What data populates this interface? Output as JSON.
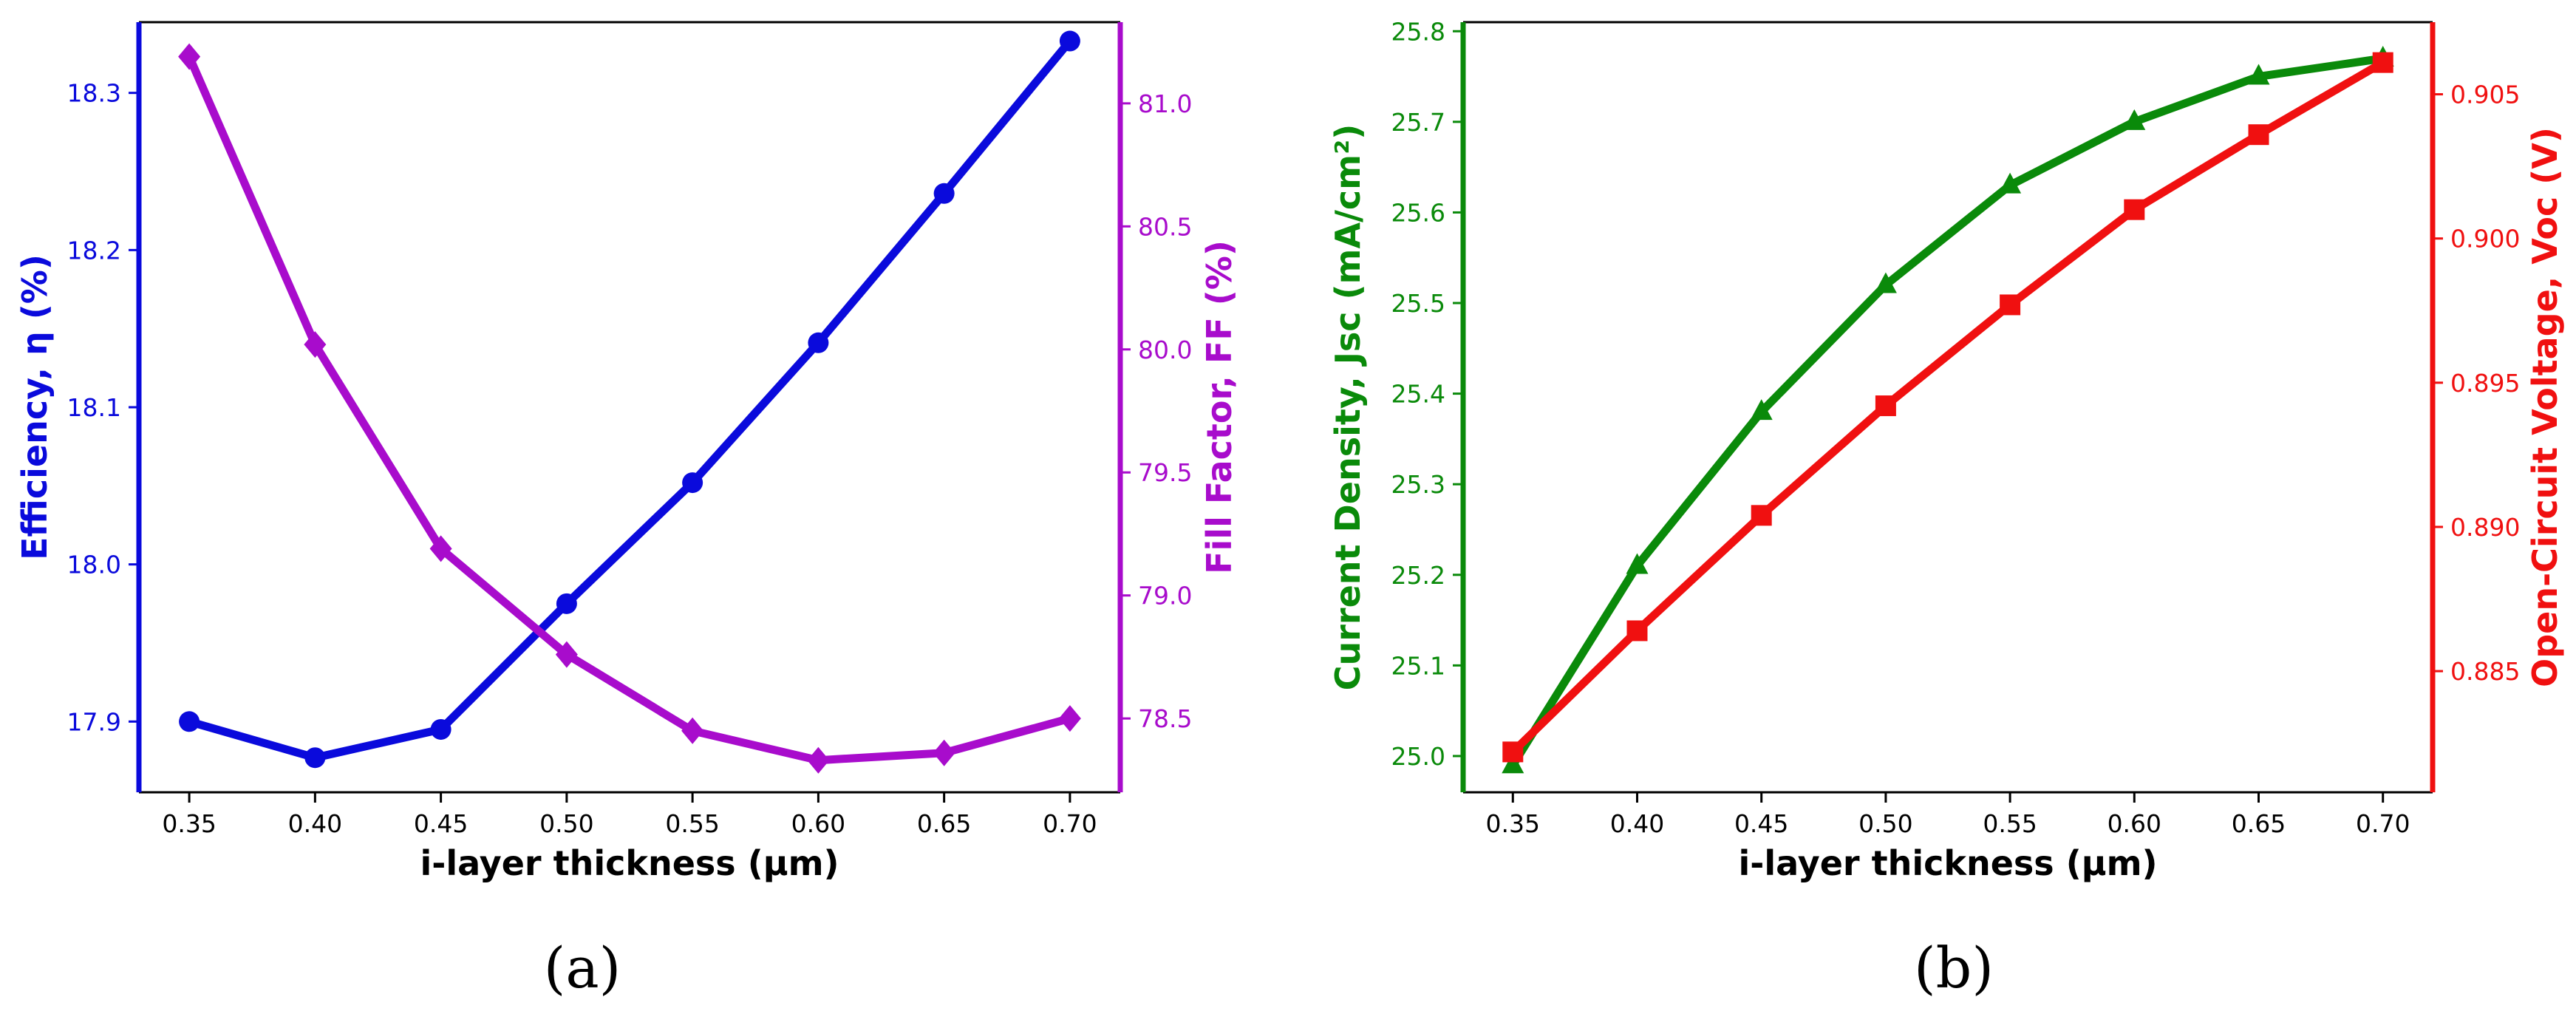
{
  "chart_data": [
    {
      "type": "line",
      "panel_label": "(a)",
      "x": [
        0.35,
        0.4,
        0.45,
        0.5,
        0.55,
        0.6,
        0.65,
        0.7
      ],
      "x_ticks": [
        "0.35",
        "0.40",
        "0.45",
        "0.50",
        "0.55",
        "0.60",
        "0.65",
        "0.70"
      ],
      "xlabel": "i-layer thickness (μm)",
      "xlim": [
        0.33,
        0.72
      ],
      "grid": false,
      "left_axis": {
        "label": "Efficiency, η (%)",
        "color": "#0a0adc",
        "ylim": [
          17.855,
          18.345
        ],
        "ticks": [
          17.9,
          18.0,
          18.1,
          18.2,
          18.3
        ],
        "tick_labels": [
          "17.9",
          "18.0",
          "18.1",
          "18.2",
          "18.3"
        ]
      },
      "right_axis": {
        "label": "Fill Factor, FF (%)",
        "color": "#a80ccc",
        "ylim": [
          78.2,
          81.33
        ],
        "ticks": [
          78.5,
          79.0,
          79.5,
          80.0,
          80.5,
          81.0
        ],
        "tick_labels": [
          "78.5",
          "79.0",
          "79.5",
          "80.0",
          "80.5",
          "81.0"
        ]
      },
      "series": [
        {
          "axis": "left",
          "marker": "circle",
          "color": "#0a0adc",
          "values": [
            17.9,
            17.877,
            17.895,
            17.975,
            18.052,
            18.141,
            18.236,
            18.333
          ]
        },
        {
          "axis": "right",
          "marker": "diamond",
          "color": "#a80ccc",
          "values": [
            81.19,
            80.02,
            79.19,
            78.76,
            78.45,
            78.33,
            78.36,
            78.5
          ]
        }
      ]
    },
    {
      "type": "line",
      "panel_label": "(b)",
      "x": [
        0.35,
        0.4,
        0.45,
        0.5,
        0.55,
        0.6,
        0.65,
        0.7
      ],
      "x_ticks": [
        "0.35",
        "0.40",
        "0.45",
        "0.50",
        "0.55",
        "0.60",
        "0.65",
        "0.70"
      ],
      "xlabel": "i-layer thickness (μm)",
      "xlim": [
        0.33,
        0.72
      ],
      "grid": false,
      "left_axis": {
        "label": "Current Density, Jsc (mA/cm²)",
        "color": "#0a8a0a",
        "ylim": [
          24.96,
          25.81
        ],
        "ticks": [
          25.0,
          25.1,
          25.2,
          25.3,
          25.4,
          25.5,
          25.6,
          25.7,
          25.8
        ],
        "tick_labels": [
          "25.0",
          "25.1",
          "25.2",
          "25.3",
          "25.4",
          "25.5",
          "25.6",
          "25.7",
          "25.8"
        ]
      },
      "right_axis": {
        "label": "Open-Circuit Voltage, Voc (V)",
        "color": "#f01010",
        "ylim": [
          0.8808,
          0.9075
        ],
        "ticks": [
          0.885,
          0.89,
          0.895,
          0.9,
          0.905
        ],
        "tick_labels": [
          "0.885",
          "0.890",
          "0.895",
          "0.900",
          "0.905"
        ]
      },
      "series": [
        {
          "axis": "left",
          "marker": "triangle",
          "color": "#0a8a0a",
          "values": [
            24.99,
            25.21,
            25.38,
            25.52,
            25.63,
            25.7,
            25.75,
            25.77
          ]
        },
        {
          "axis": "right",
          "marker": "square",
          "color": "#f01010",
          "values": [
            0.8822,
            0.8864,
            0.8904,
            0.8942,
            0.8977,
            0.901,
            0.9036,
            0.9061
          ]
        }
      ]
    }
  ]
}
